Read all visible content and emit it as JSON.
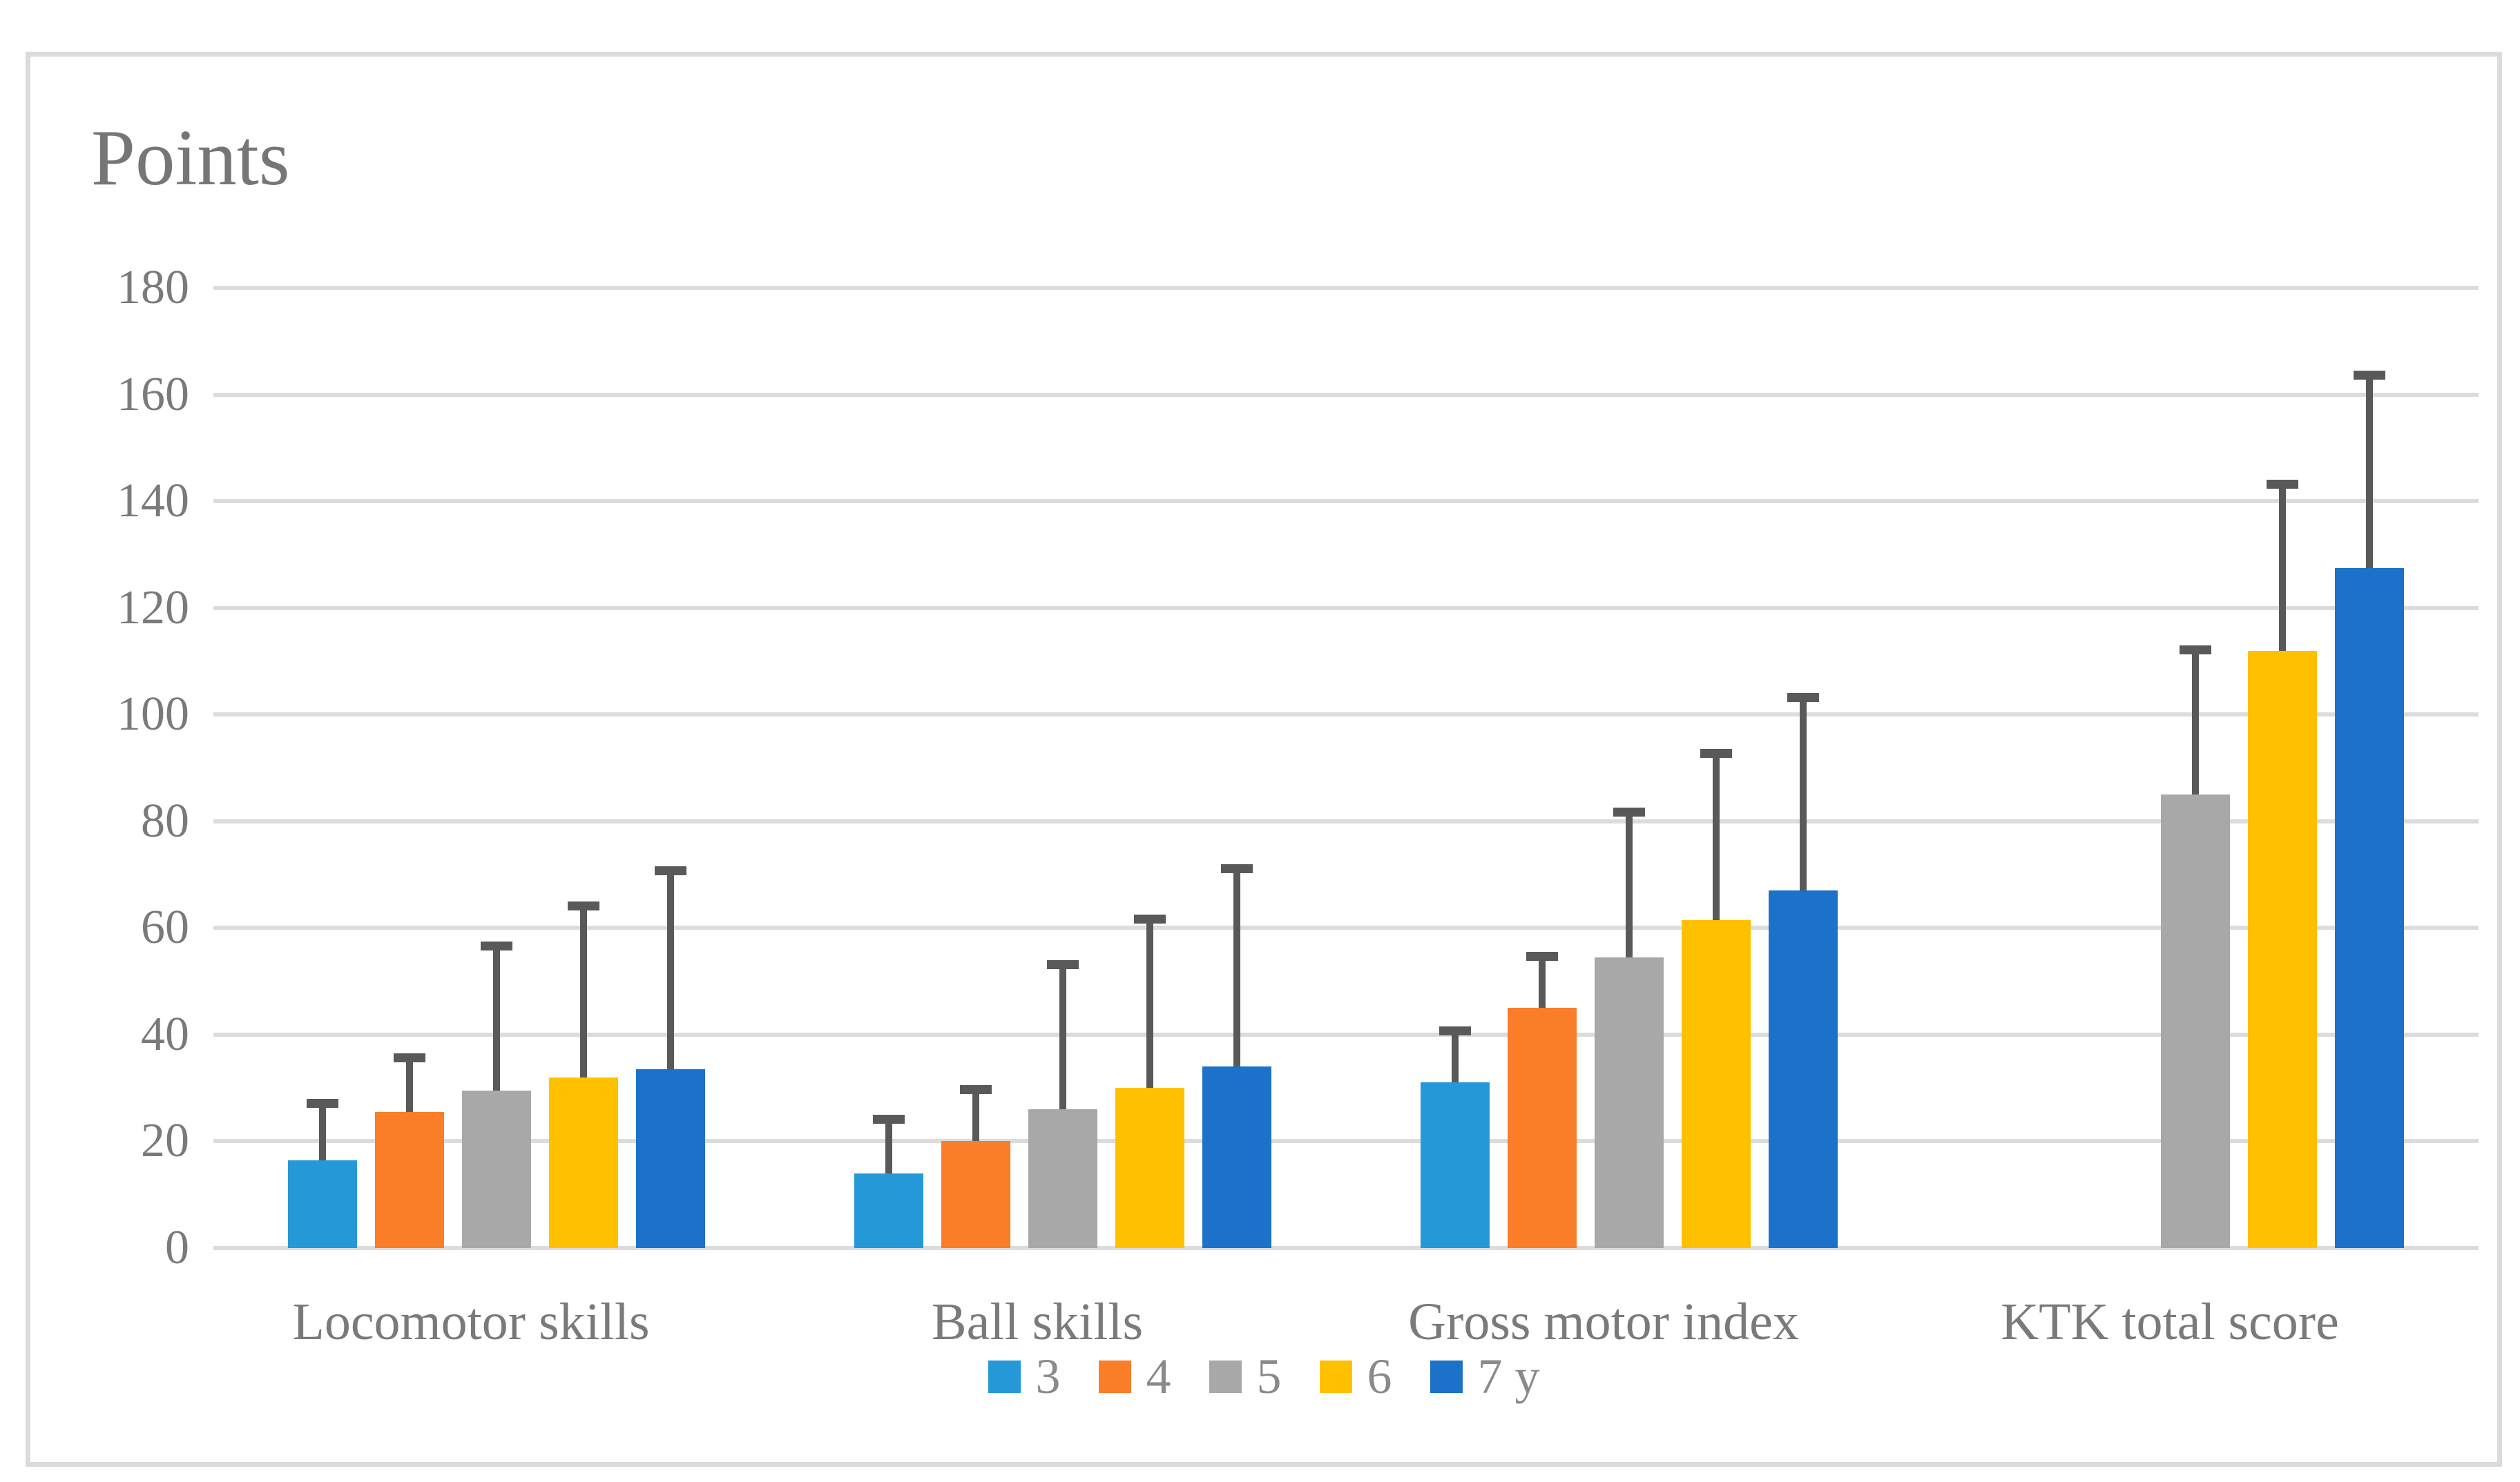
{
  "chart_data": {
    "type": "bar",
    "title": "Points",
    "xlabel": "",
    "ylabel": "Points",
    "ylim": [
      0,
      180
    ],
    "yticks": [
      0,
      20,
      40,
      60,
      80,
      100,
      120,
      140,
      160,
      180
    ],
    "grid": true,
    "legend_position": "bottom",
    "error_bars": "upper-only",
    "categories": [
      "Locomotor skills",
      "Ball skills",
      "Gross motor index",
      "KTK total score"
    ],
    "series": [
      {
        "name": "3",
        "color": "#2599D8",
        "values": [
          16.5,
          14,
          31,
          null
        ],
        "errors": [
          11.5,
          11,
          10.5,
          null
        ]
      },
      {
        "name": "4",
        "color": "#FA7D28",
        "values": [
          25.5,
          20,
          45,
          null
        ],
        "errors": [
          11,
          10.5,
          10.5,
          null
        ]
      },
      {
        "name": "5",
        "color": "#A8A8A8",
        "values": [
          29.5,
          26,
          54.5,
          85
        ],
        "errors": [
          28,
          28,
          28,
          28
        ]
      },
      {
        "name": "6",
        "color": "#FFC000",
        "values": [
          32,
          30,
          61.5,
          112
        ],
        "errors": [
          33,
          32.5,
          32,
          32
        ]
      },
      {
        "name": "7 y",
        "color": "#1C72C8",
        "values": [
          33.5,
          34,
          67,
          127.5
        ],
        "errors": [
          38,
          38,
          37,
          37
        ]
      }
    ]
  },
  "colors": {
    "gridline": "#DCDCDC",
    "frame_border": "#DBDBDB",
    "error_bar": "#595959",
    "text": "#7A7A7A",
    "background": "#FFFFFF"
  }
}
